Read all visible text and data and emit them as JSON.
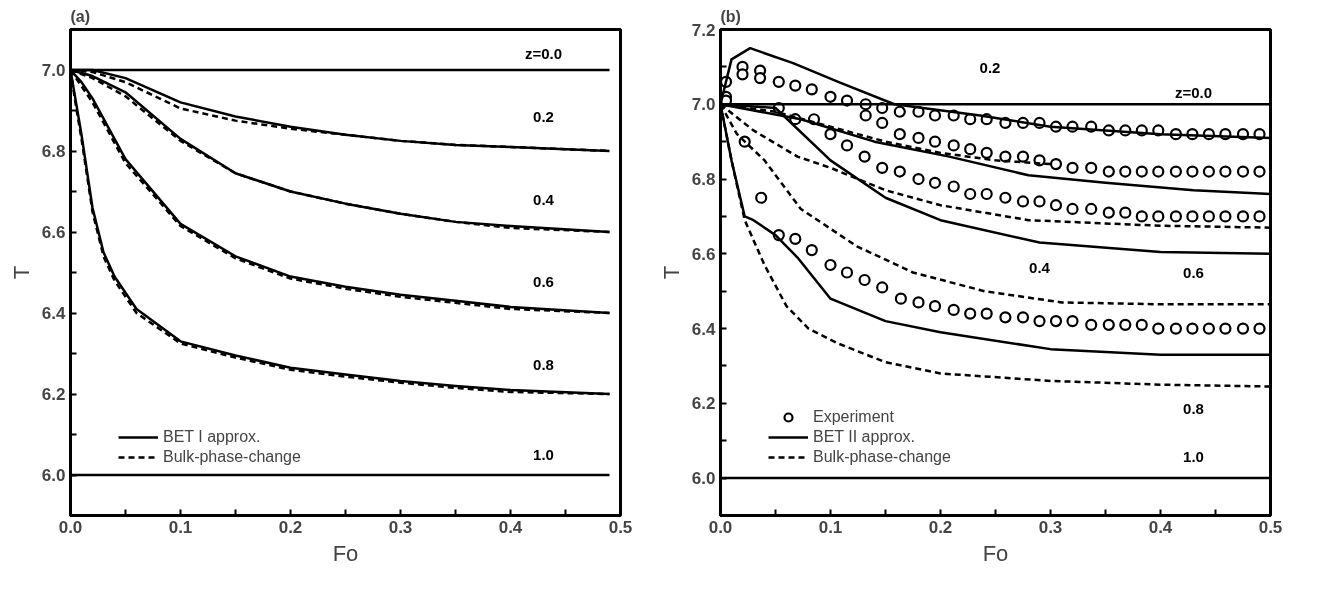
{
  "chart_data": [
    {
      "type": "line",
      "title": "(a)",
      "xlabel": "Fo",
      "ylabel": "T",
      "xlim": [
        0.0,
        0.5
      ],
      "ylim": [
        5.9,
        7.1
      ],
      "xticks": [
        {
          "value": 0,
          "label": "0.0"
        },
        {
          "value": 0.05,
          "label": null
        },
        0.1,
        {
          "value": 0.15,
          "label": null
        },
        0.2,
        {
          "value": 0.25,
          "label": null
        },
        0.3,
        {
          "value": 0.35,
          "label": null
        },
        0.4,
        {
          "value": 0.45,
          "label": null
        },
        0.5
      ],
      "yticks": [
        {
          "value": 6,
          "label": "6.0"
        },
        {
          "value": 6.1,
          "label": null
        },
        6.2,
        {
          "value": 6.3,
          "label": null
        },
        6.4,
        {
          "value": 6.5,
          "label": null
        },
        6.6,
        {
          "value": 6.7,
          "label": null
        },
        6.8,
        {
          "value": 6.9,
          "label": null
        },
        {
          "value": 7,
          "label": "7.0"
        }
      ],
      "grid": false,
      "legend": "bottom left",
      "series": [
        {
          "type": "line",
          "name": "BET I approx.",
          "line_style": "solid",
          "color": "#000000",
          "x": [
            0.0,
            0.49
          ],
          "values": [
            7.0,
            7.0
          ]
        },
        {
          "type": "line",
          "name": "Bulk-phase-change",
          "line_style": "dashed",
          "color": "#000000",
          "x": [
            0.0,
            0.02,
            0.05,
            0.1,
            0.15,
            0.2,
            0.25,
            0.3,
            0.35,
            0.4,
            0.49
          ],
          "values": [
            7.0,
            6.995,
            6.97,
            6.905,
            6.875,
            6.855,
            6.84,
            6.825,
            6.815,
            6.81,
            6.8
          ]
        },
        {
          "type": "line",
          "line_style": "solid",
          "color": "#000000",
          "x": [
            0.0,
            0.02,
            0.05,
            0.1,
            0.15,
            0.2,
            0.25,
            0.3,
            0.35,
            0.4,
            0.49
          ],
          "values": [
            7.0,
            7.0,
            6.98,
            6.92,
            6.885,
            6.86,
            6.84,
            6.825,
            6.815,
            6.81,
            6.8
          ]
        },
        {
          "type": "line",
          "line_style": "dashed",
          "color": "#000000",
          "x": [
            0.0,
            0.02,
            0.05,
            0.1,
            0.15,
            0.2,
            0.25,
            0.3,
            0.35,
            0.4,
            0.49
          ],
          "values": [
            7.0,
            6.98,
            6.935,
            6.825,
            6.745,
            6.7,
            6.67,
            6.645,
            6.625,
            6.61,
            6.6
          ]
        },
        {
          "type": "line",
          "line_style": "solid",
          "color": "#000000",
          "x": [
            0.0,
            0.02,
            0.05,
            0.1,
            0.15,
            0.2,
            0.25,
            0.3,
            0.35,
            0.4,
            0.49
          ],
          "values": [
            7.0,
            6.985,
            6.945,
            6.83,
            6.745,
            6.7,
            6.67,
            6.645,
            6.625,
            6.615,
            6.6
          ]
        },
        {
          "type": "line",
          "line_style": "dashed",
          "color": "#000000",
          "x": [
            0.0,
            0.01,
            0.02,
            0.05,
            0.1,
            0.15,
            0.2,
            0.25,
            0.3,
            0.35,
            0.4,
            0.49
          ],
          "values": [
            7.0,
            6.96,
            6.92,
            6.77,
            6.615,
            6.535,
            6.485,
            6.46,
            6.44,
            6.425,
            6.41,
            6.4
          ]
        },
        {
          "type": "line",
          "line_style": "solid",
          "color": "#000000",
          "x": [
            0.0,
            0.01,
            0.02,
            0.05,
            0.1,
            0.15,
            0.2,
            0.25,
            0.3,
            0.35,
            0.4,
            0.49
          ],
          "values": [
            7.0,
            6.97,
            6.93,
            6.78,
            6.62,
            6.54,
            6.49,
            6.465,
            6.445,
            6.43,
            6.415,
            6.4
          ]
        },
        {
          "type": "line",
          "line_style": "dashed",
          "color": "#000000",
          "x": [
            0.0,
            0.005,
            0.01,
            0.02,
            0.03,
            0.04,
            0.06,
            0.1,
            0.15,
            0.2,
            0.25,
            0.3,
            0.35,
            0.4,
            0.49
          ],
          "values": [
            7.0,
            6.91,
            6.83,
            6.65,
            6.54,
            6.48,
            6.4,
            6.325,
            6.29,
            6.26,
            6.243,
            6.228,
            6.215,
            6.205,
            6.2
          ]
        },
        {
          "type": "line",
          "line_style": "solid",
          "color": "#000000",
          "x": [
            0.0,
            0.005,
            0.01,
            0.02,
            0.03,
            0.04,
            0.06,
            0.1,
            0.15,
            0.2,
            0.25,
            0.3,
            0.35,
            0.4,
            0.49
          ],
          "values": [
            7.0,
            6.92,
            6.84,
            6.66,
            6.55,
            6.49,
            6.41,
            6.33,
            6.295,
            6.265,
            6.248,
            6.232,
            6.22,
            6.21,
            6.2
          ]
        },
        {
          "type": "line",
          "line_style": "solid",
          "color": "#000000",
          "x": [
            0.0,
            0.49
          ],
          "values": [
            6.0,
            6.0
          ]
        }
      ],
      "annotations": [
        "z=0.0",
        "0.2",
        "0.4",
        "0.6",
        "0.8",
        "1.0"
      ]
    },
    {
      "type": "line",
      "title": "(b)",
      "xlabel": "Fo",
      "ylabel": "T",
      "xlim": [
        0.0,
        0.5
      ],
      "ylim": [
        5.9,
        7.2
      ],
      "xticks": [
        {
          "value": 0,
          "label": "0.0"
        },
        {
          "value": 0.05,
          "label": null
        },
        0.1,
        {
          "value": 0.15,
          "label": null
        },
        0.2,
        {
          "value": 0.25,
          "label": null
        },
        0.3,
        {
          "value": 0.35,
          "label": null
        },
        0.4,
        {
          "value": 0.45,
          "label": null
        },
        0.5
      ],
      "yticks": [
        {
          "value": 6,
          "label": "6.0"
        },
        {
          "value": 6.1,
          "label": null
        },
        6.2,
        {
          "value": 6.3,
          "label": null
        },
        6.4,
        {
          "value": 6.5,
          "label": null
        },
        6.6,
        {
          "value": 6.7,
          "label": null
        },
        6.8,
        {
          "value": 6.9,
          "label": null
        },
        {
          "value": 7,
          "label": "7.0"
        },
        {
          "value": 7.1,
          "label": null
        },
        7.2
      ],
      "grid": false,
      "legend": "bottom left",
      "series": [
        {
          "type": "scatter",
          "name": "Experiment",
          "marker": "circle",
          "color": "#000000",
          "x": [
            0.02,
            0.036,
            0.053,
            0.068,
            0.083,
            0.1,
            0.115,
            0.132,
            0.147,
            0.163,
            0.18,
            0.195,
            0.212,
            0.227,
            0.242,
            0.259,
            0.275,
            0.29,
            0.305,
            0.32,
            0.337,
            0.353,
            0.368,
            0.383,
            0.398,
            0.414,
            0.429,
            0.444,
            0.459,
            0.475,
            0.49
          ],
          "values": [
            7.1,
            7.09,
            7.06,
            7.05,
            7.04,
            7.02,
            7.01,
            7.0,
            6.99,
            6.98,
            6.98,
            6.97,
            6.97,
            6.96,
            6.96,
            6.95,
            6.95,
            6.95,
            6.94,
            6.94,
            6.94,
            6.93,
            6.93,
            6.93,
            6.93,
            6.92,
            6.92,
            6.92,
            6.92,
            6.92,
            6.92
          ]
        },
        {
          "type": "scatter",
          "marker": "circle",
          "color": "#000000",
          "x": [
            0.005,
            0.02,
            0.036,
            0.132,
            0.147,
            0.163,
            0.18,
            0.195,
            0.212,
            0.227,
            0.242,
            0.259,
            0.275,
            0.29,
            0.305,
            0.32,
            0.337,
            0.353,
            0.368,
            0.383,
            0.398,
            0.414,
            0.429,
            0.444,
            0.459,
            0.475,
            0.49
          ],
          "values": [
            7.06,
            7.08,
            7.07,
            6.97,
            6.95,
            6.92,
            6.91,
            6.9,
            6.89,
            6.88,
            6.87,
            6.86,
            6.86,
            6.85,
            6.84,
            6.83,
            6.83,
            6.82,
            6.82,
            6.82,
            6.82,
            6.82,
            6.82,
            6.82,
            6.82,
            6.82,
            6.82
          ]
        },
        {
          "type": "scatter",
          "marker": "circle",
          "color": "#000000",
          "x": [
            0.005,
            0.053,
            0.068,
            0.085,
            0.1,
            0.115,
            0.131,
            0.147,
            0.163,
            0.18,
            0.195,
            0.212,
            0.227,
            0.242,
            0.259,
            0.275,
            0.29,
            0.305,
            0.32,
            0.337,
            0.353,
            0.368,
            0.383,
            0.398,
            0.414,
            0.429,
            0.444,
            0.459,
            0.475,
            0.49
          ],
          "values": [
            7.02,
            6.99,
            6.96,
            6.96,
            6.92,
            6.89,
            6.86,
            6.83,
            6.82,
            6.8,
            6.79,
            6.78,
            6.76,
            6.76,
            6.75,
            6.74,
            6.74,
            6.73,
            6.72,
            6.72,
            6.71,
            6.71,
            6.7,
            6.7,
            6.7,
            6.7,
            6.7,
            6.7,
            6.7,
            6.7
          ]
        },
        {
          "type": "scatter",
          "marker": "circle",
          "color": "#000000",
          "x": [
            0.005,
            0.022,
            0.037,
            0.053,
            0.068,
            0.083,
            0.1,
            0.115,
            0.131,
            0.147,
            0.164,
            0.18,
            0.195,
            0.212,
            0.227,
            0.242,
            0.259,
            0.275,
            0.29,
            0.305,
            0.32,
            0.337,
            0.353,
            0.368,
            0.383,
            0.398,
            0.414,
            0.429,
            0.444,
            0.459,
            0.475,
            0.49
          ],
          "values": [
            7.01,
            6.9,
            6.75,
            6.65,
            6.64,
            6.61,
            6.57,
            6.55,
            6.53,
            6.51,
            6.48,
            6.47,
            6.46,
            6.45,
            6.44,
            6.44,
            6.43,
            6.43,
            6.42,
            6.42,
            6.42,
            6.41,
            6.41,
            6.41,
            6.41,
            6.4,
            6.4,
            6.4,
            6.4,
            6.4,
            6.4,
            6.4
          ]
        },
        {
          "type": "line",
          "name": "BET II approx.",
          "line_style": "solid",
          "color": "#000000",
          "x": [
            0.0,
            0.5
          ],
          "values": [
            7.0,
            7.0
          ]
        },
        {
          "type": "line",
          "name": "Bulk-phase-change",
          "line_style": "dashed",
          "color": "#000000",
          "x": [
            0.0,
            0.05,
            0.1,
            0.15,
            0.2,
            0.25,
            0.3
          ],
          "values": [
            7.0,
            6.98,
            6.94,
            6.9,
            6.87,
            6.85,
            6.84
          ]
        },
        {
          "type": "line",
          "line_style": "solid",
          "color": "#000000",
          "x": [
            0.0,
            0.01,
            0.027,
            0.066,
            0.107,
            0.158,
            0.236,
            0.3,
            0.4,
            0.5
          ],
          "values": [
            7.0,
            7.12,
            7.15,
            7.11,
            7.06,
            7.0,
            6.97,
            6.94,
            6.92,
            6.91
          ]
        },
        {
          "type": "line",
          "line_style": "solid",
          "color": "#000000",
          "x": [
            0.0,
            0.073,
            0.14,
            0.208,
            0.28,
            0.35,
            0.43,
            0.5
          ],
          "values": [
            7.0,
            6.96,
            6.9,
            6.86,
            6.81,
            6.79,
            6.77,
            6.76
          ]
        },
        {
          "type": "line",
          "line_style": "dashed",
          "color": "#000000",
          "x": [
            0.0,
            0.03,
            0.07,
            0.1,
            0.15,
            0.2,
            0.28,
            0.4,
            0.5
          ],
          "values": [
            7.0,
            6.93,
            6.86,
            6.83,
            6.77,
            6.73,
            6.69,
            6.675,
            6.67
          ]
        },
        {
          "type": "line",
          "line_style": "solid",
          "color": "#000000",
          "x": [
            0.0,
            0.05,
            0.1,
            0.15,
            0.2,
            0.29,
            0.4,
            0.5
          ],
          "values": [
            7.0,
            6.99,
            6.85,
            6.75,
            6.69,
            6.63,
            6.605,
            6.6
          ]
        },
        {
          "type": "line",
          "line_style": "dashed",
          "color": "#000000",
          "x": [
            0.0,
            0.015,
            0.04,
            0.073,
            0.124,
            0.175,
            0.24,
            0.31,
            0.4,
            0.5
          ],
          "values": [
            7.0,
            6.92,
            6.85,
            6.72,
            6.62,
            6.55,
            6.5,
            6.47,
            6.465,
            6.465
          ]
        },
        {
          "type": "line",
          "line_style": "solid",
          "color": "#000000",
          "x": [
            0.0,
            0.01,
            0.022,
            0.03,
            0.05,
            0.07,
            0.1,
            0.15,
            0.2,
            0.3,
            0.4,
            0.5
          ],
          "values": [
            7.0,
            6.85,
            6.7,
            6.69,
            6.65,
            6.59,
            6.48,
            6.42,
            6.39,
            6.345,
            6.33,
            6.33
          ]
        },
        {
          "type": "line",
          "line_style": "dashed",
          "color": "#000000",
          "x": [
            0.0,
            0.01,
            0.022,
            0.04,
            0.06,
            0.08,
            0.107,
            0.15,
            0.2,
            0.3,
            0.4,
            0.5
          ],
          "values": [
            7.0,
            6.85,
            6.69,
            6.57,
            6.46,
            6.4,
            6.36,
            6.31,
            6.28,
            6.26,
            6.25,
            6.245
          ]
        },
        {
          "type": "line",
          "line_style": "solid",
          "color": "#000000",
          "x": [
            0.0,
            0.5
          ],
          "values": [
            6.0,
            6.0
          ]
        }
      ],
      "annotations": [
        "z=0.0",
        "0.2",
        "0.4",
        "0.6",
        "0.8",
        "1.0"
      ]
    }
  ]
}
